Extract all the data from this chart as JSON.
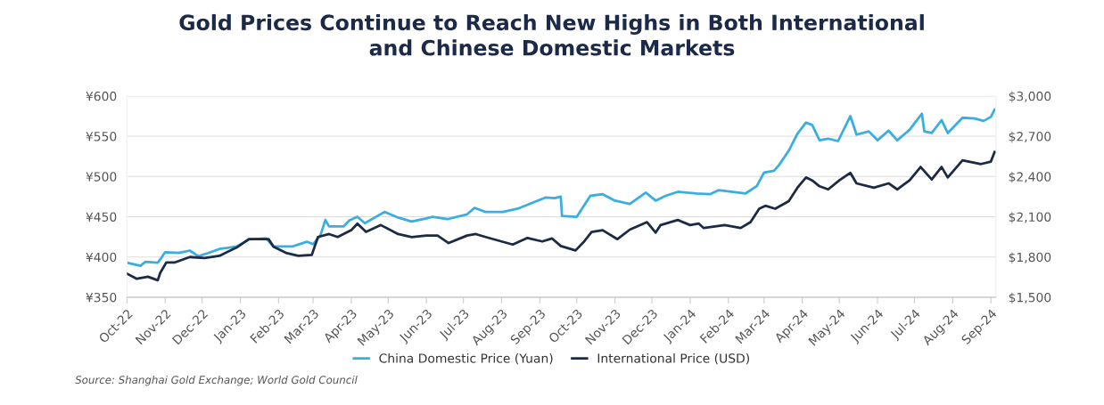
{
  "chart_data": {
    "type": "line",
    "title": "Gold Prices Continue to Reach New Highs in Both International\nand Chinese Domestic Markets",
    "xlim": [
      "2022-10-01",
      "2024-09-05"
    ],
    "xticks": [
      {
        "value": "2022-10-01",
        "label": "Oct-22"
      },
      {
        "value": "2022-11-01",
        "label": "Nov-22"
      },
      {
        "value": "2022-12-01",
        "label": "Dec-22"
      },
      {
        "value": "2023-01-01",
        "label": "Jan-23"
      },
      {
        "value": "2023-02-01",
        "label": "Feb-23"
      },
      {
        "value": "2023-03-01",
        "label": "Mar-23"
      },
      {
        "value": "2023-04-01",
        "label": "Apr-23"
      },
      {
        "value": "2023-05-01",
        "label": "May-23"
      },
      {
        "value": "2023-06-01",
        "label": "Jun-23"
      },
      {
        "value": "2023-07-01",
        "label": "Jul-23"
      },
      {
        "value": "2023-08-01",
        "label": "Aug-23"
      },
      {
        "value": "2023-09-01",
        "label": "Sep-23"
      },
      {
        "value": "2023-10-01",
        "label": "Oct-23"
      },
      {
        "value": "2023-11-01",
        "label": "Nov-23"
      },
      {
        "value": "2023-12-01",
        "label": "Dec-23"
      },
      {
        "value": "2024-01-01",
        "label": "Jan-24"
      },
      {
        "value": "2024-02-01",
        "label": "Feb-24"
      },
      {
        "value": "2024-03-01",
        "label": "Mar-24"
      },
      {
        "value": "2024-04-01",
        "label": "Apr-24"
      },
      {
        "value": "2024-05-01",
        "label": "May-24"
      },
      {
        "value": "2024-06-01",
        "label": "Jun-24"
      },
      {
        "value": "2024-07-01",
        "label": "Jul-24"
      },
      {
        "value": "2024-08-01",
        "label": "Aug-24"
      },
      {
        "value": "2024-09-01",
        "label": "Sep-24"
      }
    ],
    "ylim": [
      350,
      600
    ],
    "yticks": [
      {
        "value": 350,
        "label": "¥350"
      },
      {
        "value": 400,
        "label": "¥400"
      },
      {
        "value": 450,
        "label": "¥450"
      },
      {
        "value": 500,
        "label": "¥500"
      },
      {
        "value": 550,
        "label": "¥550"
      },
      {
        "value": 600,
        "label": "¥600"
      }
    ],
    "y2lim": [
      1500,
      3000
    ],
    "y2ticks": [
      {
        "value": 1500,
        "label": "$1,500"
      },
      {
        "value": 1800,
        "label": "$1,800"
      },
      {
        "value": 2100,
        "label": "$2,100"
      },
      {
        "value": 2400,
        "label": "$2,400"
      },
      {
        "value": 2700,
        "label": "$2,700"
      },
      {
        "value": 3000,
        "label": "$3,000"
      }
    ],
    "grid": "y",
    "legend": "bottom",
    "marker": "none",
    "line_style": "solid",
    "annotations": [
      "Source: Shanghai Gold Exchange; World Gold Council"
    ],
    "series": [
      {
        "name": "China Domestic Price (Yuan)",
        "color": "#3aaee0",
        "x": [
          "2022-10-01",
          "2022-10-12",
          "2022-10-16",
          "2022-10-26",
          "2022-10-28",
          "2022-11-01",
          "2022-11-12",
          "2022-11-21",
          "2022-11-28",
          "2022-12-06",
          "2022-12-15",
          "2022-12-29",
          "2023-01-08",
          "2023-01-22",
          "2023-01-28",
          "2023-02-12",
          "2023-02-24",
          "2023-03-01",
          "2023-03-07",
          "2023-03-11",
          "2023-03-14",
          "2023-03-26",
          "2023-03-30",
          "2023-04-06",
          "2023-04-12",
          "2023-04-28",
          "2023-05-09",
          "2023-05-20",
          "2023-06-01",
          "2023-06-06",
          "2023-06-18",
          "2023-07-04",
          "2023-07-10",
          "2023-07-19",
          "2023-08-02",
          "2023-08-14",
          "2023-08-27",
          "2023-09-06",
          "2023-09-13",
          "2023-09-18",
          "2023-09-19",
          "2023-10-01",
          "2023-10-12",
          "2023-10-22",
          "2023-11-01",
          "2023-11-13",
          "2023-11-26",
          "2023-12-04",
          "2023-12-12",
          "2023-12-22",
          "2024-01-06",
          "2024-01-17",
          "2024-01-24",
          "2024-02-15",
          "2024-02-24",
          "2024-03-01",
          "2024-03-09",
          "2024-03-13",
          "2024-03-21",
          "2024-03-28",
          "2024-04-04",
          "2024-04-09",
          "2024-04-15",
          "2024-04-22",
          "2024-04-30",
          "2024-05-10",
          "2024-05-15",
          "2024-05-25",
          "2024-06-01",
          "2024-06-10",
          "2024-06-17",
          "2024-06-27",
          "2024-07-07",
          "2024-07-09",
          "2024-07-15",
          "2024-07-23",
          "2024-07-28",
          "2024-08-09",
          "2024-08-19",
          "2024-08-26",
          "2024-09-01",
          "2024-09-04"
        ],
        "values": [
          393,
          389,
          394,
          393,
          397,
          406,
          405,
          408,
          401,
          405,
          410,
          413,
          422,
          423,
          413,
          413,
          419,
          416,
          427,
          446,
          438,
          438,
          445,
          450,
          442,
          456,
          449,
          444,
          448,
          450,
          447,
          453,
          461,
          456,
          456,
          460,
          468,
          474,
          473,
          475,
          451,
          450,
          476,
          478,
          470,
          466,
          480,
          470,
          476,
          481,
          479,
          478,
          483,
          479,
          488,
          505,
          507,
          514,
          532,
          553,
          567,
          564,
          545,
          547,
          544,
          575,
          552,
          556,
          545,
          557,
          545,
          558,
          578,
          556,
          554,
          570,
          554,
          573,
          572,
          569,
          574,
          583
        ]
      },
      {
        "name": "International Price (USD)",
        "color": "#1c2b45",
        "axis": "y2",
        "x": [
          "2022-10-01",
          "2022-10-09",
          "2022-10-18",
          "2022-10-26",
          "2022-10-28",
          "2022-11-02",
          "2022-11-09",
          "2022-11-21",
          "2022-12-03",
          "2022-12-15",
          "2022-12-29",
          "2023-01-08",
          "2023-01-24",
          "2023-01-28",
          "2023-02-07",
          "2023-02-17",
          "2023-02-28",
          "2023-03-05",
          "2023-03-14",
          "2023-03-21",
          "2023-04-01",
          "2023-04-06",
          "2023-04-13",
          "2023-04-25",
          "2023-05-09",
          "2023-05-20",
          "2023-06-01",
          "2023-06-10",
          "2023-06-19",
          "2023-07-04",
          "2023-07-11",
          "2023-07-19",
          "2023-08-10",
          "2023-08-22",
          "2023-09-03",
          "2023-09-11",
          "2023-09-18",
          "2023-09-30",
          "2023-10-07",
          "2023-10-13",
          "2023-10-22",
          "2023-11-03",
          "2023-11-13",
          "2023-11-27",
          "2023-12-04",
          "2023-12-08",
          "2023-12-22",
          "2024-01-01",
          "2024-01-08",
          "2024-01-12",
          "2024-01-29",
          "2024-02-11",
          "2024-02-19",
          "2024-02-26",
          "2024-03-02",
          "2024-03-10",
          "2024-03-21",
          "2024-03-28",
          "2024-04-04",
          "2024-04-09",
          "2024-04-15",
          "2024-04-22",
          "2024-05-01",
          "2024-05-10",
          "2024-05-15",
          "2024-05-29",
          "2024-06-10",
          "2024-06-17",
          "2024-06-27",
          "2024-07-06",
          "2024-07-15",
          "2024-07-23",
          "2024-07-28",
          "2024-08-09",
          "2024-08-24",
          "2024-09-01",
          "2024-09-04"
        ],
        "values": [
          1676,
          1638,
          1653,
          1627,
          1682,
          1760,
          1760,
          1800,
          1793,
          1809,
          1871,
          1933,
          1933,
          1876,
          1831,
          1809,
          1816,
          1949,
          1971,
          1949,
          2000,
          2049,
          1987,
          2038,
          1971,
          1949,
          1960,
          1960,
          1904,
          1960,
          1971,
          1949,
          1893,
          1942,
          1916,
          1938,
          1882,
          1849,
          1916,
          1987,
          2000,
          1933,
          2004,
          2060,
          1982,
          2038,
          2076,
          2038,
          2049,
          2016,
          2038,
          2016,
          2060,
          2160,
          2182,
          2160,
          2216,
          2316,
          2393,
          2371,
          2327,
          2304,
          2371,
          2427,
          2349,
          2316,
          2349,
          2304,
          2371,
          2471,
          2378,
          2471,
          2393,
          2520,
          2493,
          2511,
          2582
        ]
      }
    ]
  }
}
